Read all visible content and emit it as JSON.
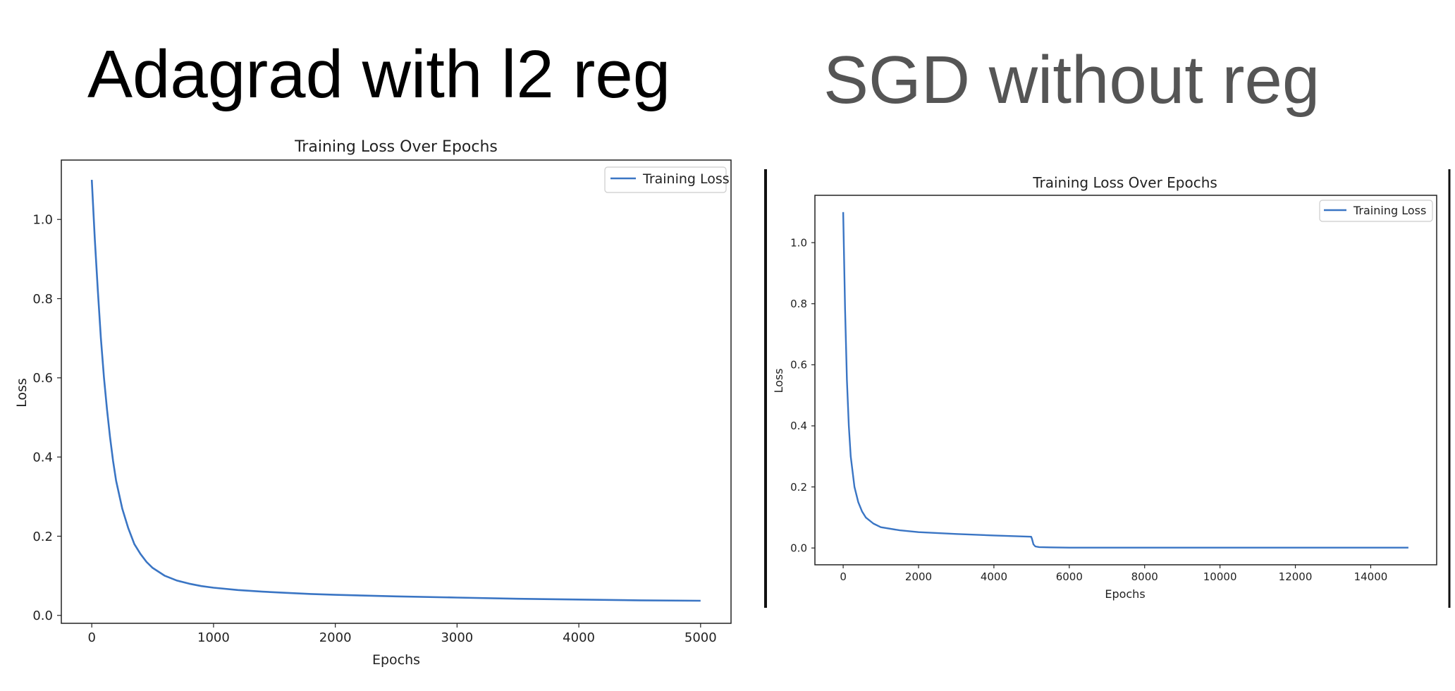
{
  "slide": {
    "left_title": "Adagrad with l2 reg",
    "right_title": "SGD without reg",
    "colors": {
      "left_title": "#000000",
      "right_title": "#555555",
      "line": "#3a75c4"
    }
  },
  "chart_data": [
    {
      "type": "line",
      "title": "Training Loss Over Epochs",
      "xlabel": "Epochs",
      "ylabel": "Loss",
      "xlim": [
        -250,
        5250
      ],
      "ylim": [
        -0.02,
        1.15
      ],
      "xticks": [
        0,
        1000,
        2000,
        3000,
        4000,
        5000
      ],
      "yticks": [
        0.0,
        0.2,
        0.4,
        0.6,
        0.8,
        1.0
      ],
      "ytick_labels": [
        "0.0",
        "0.2",
        "0.4",
        "0.6",
        "0.8",
        "1.0"
      ],
      "legend": {
        "position": "top-right",
        "entries": [
          "Training Loss"
        ]
      },
      "grid": false,
      "series": [
        {
          "name": "Training Loss",
          "color": "#3a75c4",
          "x": [
            0,
            25,
            50,
            75,
            100,
            125,
            150,
            175,
            200,
            250,
            300,
            350,
            400,
            450,
            500,
            600,
            700,
            800,
            900,
            1000,
            1200,
            1400,
            1600,
            1800,
            2000,
            2500,
            3000,
            3500,
            4000,
            4500,
            5000
          ],
          "y": [
            1.1,
            0.95,
            0.82,
            0.7,
            0.6,
            0.52,
            0.45,
            0.39,
            0.34,
            0.27,
            0.22,
            0.18,
            0.155,
            0.135,
            0.12,
            0.1,
            0.088,
            0.08,
            0.074,
            0.07,
            0.064,
            0.06,
            0.057,
            0.054,
            0.052,
            0.048,
            0.045,
            0.042,
            0.04,
            0.038,
            0.037
          ]
        }
      ]
    },
    {
      "type": "line",
      "title": "Training Loss Over Epochs",
      "xlabel": "Epochs",
      "ylabel": "Loss",
      "xlim": [
        -750,
        15750
      ],
      "ylim": [
        -0.055,
        1.155
      ],
      "xticks": [
        0,
        2000,
        4000,
        6000,
        8000,
        10000,
        12000,
        14000
      ],
      "yticks": [
        0.0,
        0.2,
        0.4,
        0.6,
        0.8,
        1.0
      ],
      "ytick_labels": [
        "0.0",
        "0.2",
        "0.4",
        "0.6",
        "0.8",
        "1.0"
      ],
      "legend": {
        "position": "top-right",
        "entries": [
          "Training Loss"
        ]
      },
      "grid": false,
      "series": [
        {
          "name": "Training Loss",
          "color": "#3a75c4",
          "x": [
            0,
            50,
            100,
            150,
            200,
            300,
            400,
            500,
            600,
            800,
            1000,
            1500,
            2000,
            3000,
            4000,
            4990,
            5010,
            5050,
            5100,
            5200,
            5500,
            6000,
            8000,
            10000,
            12000,
            14000,
            15000
          ],
          "y": [
            1.1,
            0.78,
            0.55,
            0.4,
            0.3,
            0.2,
            0.15,
            0.12,
            0.1,
            0.08,
            0.068,
            0.058,
            0.052,
            0.046,
            0.041,
            0.037,
            0.03,
            0.012,
            0.005,
            0.003,
            0.002,
            0.001,
            0.001,
            0.001,
            0.001,
            0.001,
            0.001
          ]
        }
      ]
    }
  ]
}
